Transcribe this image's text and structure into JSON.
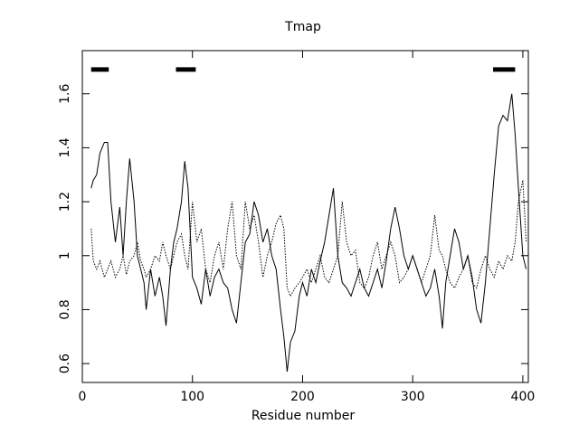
{
  "chart_data": {
    "type": "line",
    "title": "Tmap",
    "xlabel": "Residue number",
    "x": [
      8,
      10,
      13,
      16,
      20,
      23,
      26,
      30,
      34,
      37,
      40,
      43,
      47,
      50,
      53,
      56,
      58,
      62,
      66,
      70,
      73,
      76,
      80,
      83,
      86,
      90,
      93,
      96,
      100,
      104,
      108,
      112,
      116,
      120,
      124,
      128,
      132,
      136,
      140,
      144,
      148,
      152,
      156,
      160,
      164,
      168,
      172,
      176,
      180,
      183,
      186,
      189,
      193,
      197,
      200,
      204,
      208,
      212,
      216,
      220,
      224,
      228,
      232,
      236,
      240,
      244,
      248,
      252,
      256,
      260,
      264,
      268,
      272,
      276,
      280,
      284,
      288,
      292,
      296,
      300,
      304,
      308,
      312,
      316,
      320,
      324,
      327,
      330,
      334,
      338,
      342,
      346,
      350,
      354,
      358,
      362,
      366,
      370,
      374,
      378,
      382,
      386,
      390,
      393,
      396,
      400,
      403
    ],
    "series": [
      {
        "color": "#000000",
        "style": "solid",
        "values": [
          1.25,
          1.28,
          1.3,
          1.38,
          1.42,
          1.42,
          1.2,
          1.05,
          1.18,
          1.0,
          1.2,
          1.36,
          1.2,
          1.0,
          0.95,
          0.9,
          0.8,
          0.95,
          0.85,
          0.92,
          0.85,
          0.74,
          0.95,
          1.05,
          1.1,
          1.2,
          1.35,
          1.25,
          0.92,
          0.88,
          0.82,
          0.95,
          0.85,
          0.92,
          0.95,
          0.9,
          0.88,
          0.8,
          0.75,
          0.9,
          1.05,
          1.08,
          1.2,
          1.15,
          1.05,
          1.1,
          1.0,
          0.95,
          0.8,
          0.7,
          0.57,
          0.68,
          0.72,
          0.85,
          0.9,
          0.85,
          0.95,
          0.9,
          0.98,
          1.05,
          1.15,
          1.25,
          1.0,
          0.9,
          0.88,
          0.85,
          0.9,
          0.95,
          0.88,
          0.85,
          0.9,
          0.95,
          0.88,
          0.98,
          1.1,
          1.18,
          1.1,
          1.0,
          0.95,
          1.0,
          0.95,
          0.9,
          0.85,
          0.88,
          0.95,
          0.85,
          0.73,
          0.9,
          1.0,
          1.1,
          1.05,
          0.95,
          1.0,
          0.92,
          0.8,
          0.75,
          0.9,
          1.1,
          1.3,
          1.48,
          1.52,
          1.5,
          1.6,
          1.45,
          1.25,
          1.0,
          0.95
        ]
      },
      {
        "color": "#000000",
        "style": "dotted",
        "values": [
          1.1,
          0.98,
          0.95,
          0.98,
          0.92,
          0.95,
          0.98,
          0.92,
          0.95,
          1.0,
          0.93,
          0.98,
          1.0,
          1.05,
          0.98,
          0.95,
          0.92,
          0.95,
          1.0,
          0.98,
          1.05,
          1.0,
          0.95,
          1.0,
          1.05,
          1.08,
          1.0,
          0.95,
          1.2,
          1.05,
          1.1,
          0.95,
          0.9,
          1.0,
          1.05,
          0.95,
          1.1,
          1.2,
          1.0,
          0.95,
          1.2,
          1.1,
          1.15,
          1.05,
          0.92,
          1.0,
          1.05,
          1.12,
          1.15,
          1.1,
          0.88,
          0.85,
          0.88,
          0.9,
          0.92,
          0.95,
          0.9,
          0.95,
          1.0,
          0.92,
          0.9,
          0.95,
          1.0,
          1.2,
          1.05,
          1.0,
          1.02,
          0.9,
          0.88,
          0.92,
          1.0,
          1.05,
          0.95,
          1.0,
          1.05,
          1.0,
          0.9,
          0.92,
          0.95,
          1.0,
          0.95,
          0.9,
          0.95,
          1.0,
          1.15,
          1.02,
          1.0,
          0.95,
          0.9,
          0.88,
          0.92,
          0.95,
          1.0,
          0.9,
          0.88,
          0.95,
          1.0,
          0.95,
          0.92,
          0.98,
          0.95,
          1.0,
          0.98,
          1.05,
          1.2,
          1.28,
          1.05
        ]
      }
    ],
    "regions": [
      {
        "start": 8,
        "end": 24
      },
      {
        "start": 85,
        "end": 103
      },
      {
        "start": 373,
        "end": 393
      }
    ],
    "region_y": 1.69,
    "xlim": [
      0,
      405
    ],
    "xticks": [
      0,
      100,
      200,
      300,
      400
    ],
    "ylim": [
      0.53,
      1.76
    ],
    "yticks": [
      0.6,
      0.8,
      1.0,
      1.2,
      1.4,
      1.6
    ]
  }
}
